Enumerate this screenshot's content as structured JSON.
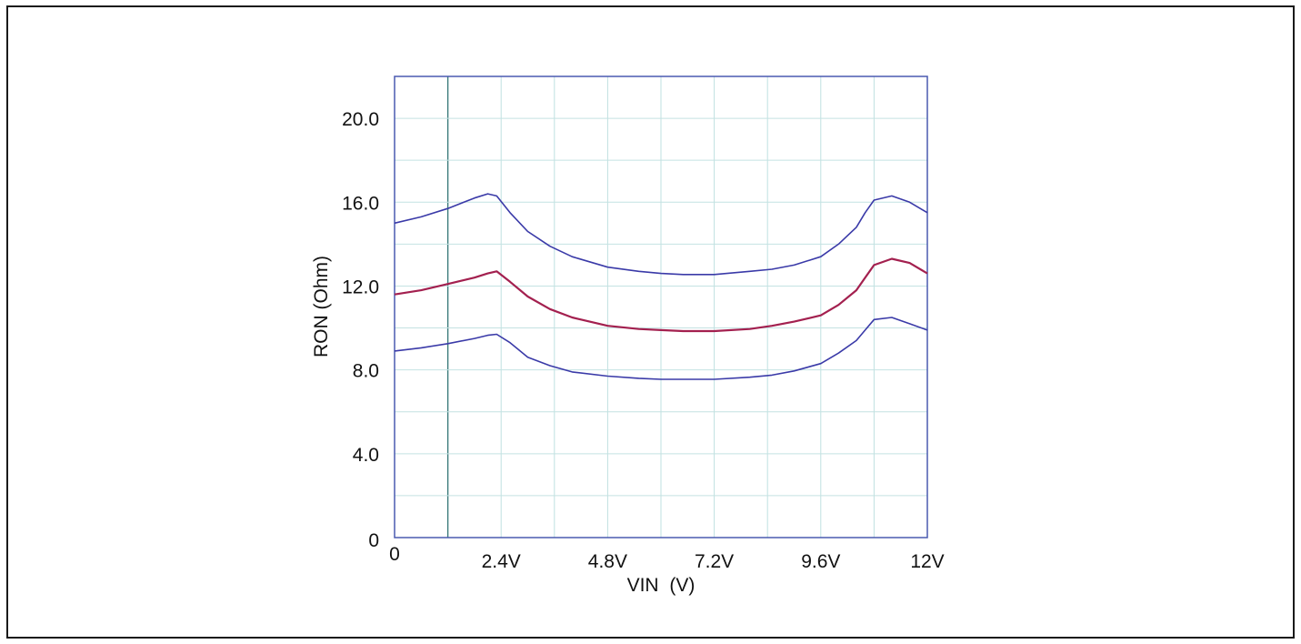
{
  "chart_data": {
    "type": "line",
    "title": "",
    "xlabel": "VIN (V)",
    "xlabel_main": "VIN",
    "xlabel_unit": "(V)",
    "ylabel": "RON (Ohm)",
    "xlim": [
      0,
      12
    ],
    "ylim": [
      0,
      22
    ],
    "grid": true,
    "x_ticks": [
      {
        "value": 0,
        "label": "0"
      },
      {
        "value": 2.4,
        "label": "2.4V"
      },
      {
        "value": 4.8,
        "label": "4.8V"
      },
      {
        "value": 7.2,
        "label": "7.2V"
      },
      {
        "value": 9.6,
        "label": "9.6V"
      },
      {
        "value": 12,
        "label": "12V"
      }
    ],
    "y_ticks": [
      {
        "value": 0,
        "label": "0"
      },
      {
        "value": 4,
        "label": "4.0"
      },
      {
        "value": 8,
        "label": "8.0"
      },
      {
        "value": 12,
        "label": "12.0"
      },
      {
        "value": 16,
        "label": "16.0"
      },
      {
        "value": 20,
        "label": "20.0"
      }
    ],
    "series": [
      {
        "color": "#3a3aa8",
        "x": [
          0,
          0.6,
          1.2,
          1.8,
          2.1,
          2.3,
          2.6,
          3.0,
          3.5,
          4.0,
          4.8,
          5.5,
          6.0,
          6.5,
          7.2,
          8.0,
          8.5,
          9.0,
          9.6,
          10.0,
          10.4,
          10.6,
          10.8,
          11.2,
          11.6,
          12.0
        ],
        "values": [
          15.0,
          15.3,
          15.7,
          16.2,
          16.4,
          16.3,
          15.5,
          14.6,
          13.9,
          13.4,
          12.9,
          12.7,
          12.6,
          12.55,
          12.55,
          12.7,
          12.8,
          13.0,
          13.4,
          14.0,
          14.8,
          15.5,
          16.1,
          16.3,
          16.0,
          15.5
        ]
      },
      {
        "color": "#a3204f",
        "x": [
          0,
          0.6,
          1.2,
          1.8,
          2.1,
          2.3,
          2.6,
          3.0,
          3.5,
          4.0,
          4.8,
          5.5,
          6.0,
          6.5,
          7.2,
          8.0,
          8.5,
          9.0,
          9.6,
          10.0,
          10.4,
          10.6,
          10.8,
          11.2,
          11.6,
          12.0
        ],
        "values": [
          11.6,
          11.8,
          12.1,
          12.4,
          12.6,
          12.7,
          12.2,
          11.5,
          10.9,
          10.5,
          10.1,
          9.95,
          9.9,
          9.85,
          9.85,
          9.95,
          10.1,
          10.3,
          10.6,
          11.1,
          11.8,
          12.4,
          13.0,
          13.3,
          13.1,
          12.6
        ]
      },
      {
        "color": "#3a3aa8",
        "x": [
          0,
          0.6,
          1.2,
          1.8,
          2.1,
          2.3,
          2.6,
          3.0,
          3.5,
          4.0,
          4.8,
          5.5,
          6.0,
          6.5,
          7.2,
          8.0,
          8.5,
          9.0,
          9.6,
          10.0,
          10.4,
          10.6,
          10.8,
          11.2,
          11.6,
          12.0
        ],
        "values": [
          8.9,
          9.05,
          9.25,
          9.5,
          9.65,
          9.7,
          9.3,
          8.6,
          8.2,
          7.9,
          7.7,
          7.6,
          7.55,
          7.55,
          7.55,
          7.65,
          7.75,
          7.95,
          8.3,
          8.8,
          9.4,
          9.9,
          10.4,
          10.5,
          10.2,
          9.9
        ]
      }
    ]
  }
}
